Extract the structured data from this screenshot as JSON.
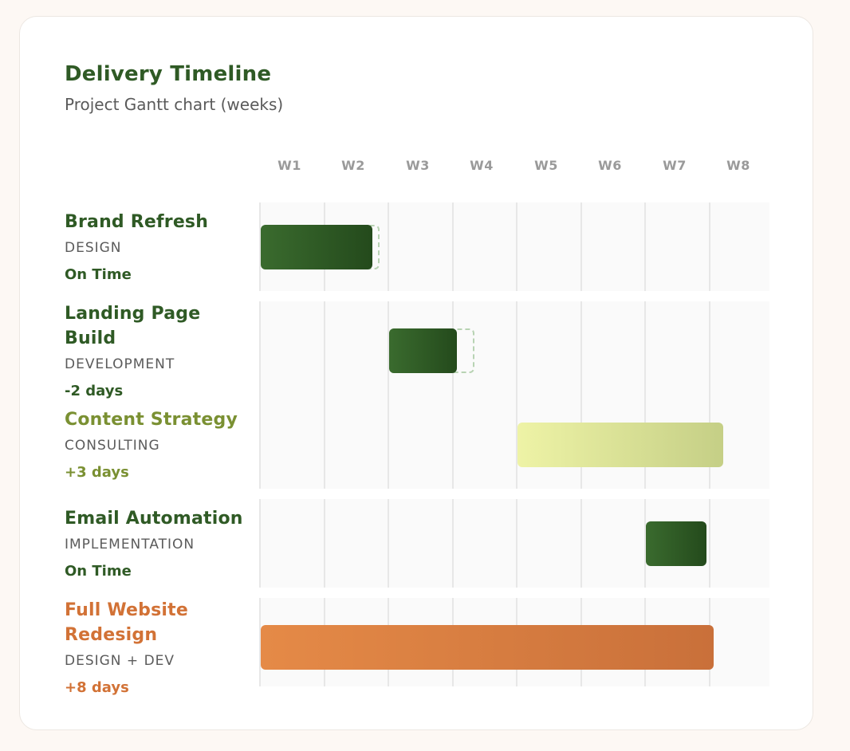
{
  "header": {
    "title": "Delivery Timeline",
    "subtitle": "Project Gantt chart (weeks)"
  },
  "colors": {
    "green_dark": "#2f5a25",
    "green_bar_start": "#3a6b2e",
    "green_bar_end": "#244a1c",
    "olive": "#7a9032",
    "lime_start": "#eef3a6",
    "lime_end": "#c5cf86",
    "orange": "#d27236",
    "orange_start": "#e58a47",
    "orange_end": "#c9703a",
    "ghost_border": "#b8d3b3"
  },
  "chart_data": {
    "type": "gantt",
    "title": "Delivery Timeline",
    "subtitle": "Project Gantt chart (weeks)",
    "weeks": [
      "W1",
      "W2",
      "W3",
      "W4",
      "W5",
      "W6",
      "W7",
      "W8"
    ],
    "tasks": [
      {
        "name": "Brand Refresh",
        "category": "DESIGN",
        "status": "On Time",
        "tone": "green",
        "start": 0,
        "end": 1.74,
        "planned_end": 1.85
      },
      {
        "name": "Landing Page Build",
        "category": "DEVELOPMENT",
        "status": "-2 days",
        "tone": "green",
        "start": 2.0,
        "end": 3.06,
        "planned_end": 3.33
      },
      {
        "name": "Content Strategy",
        "category": "CONSULTING",
        "status": "+3 days",
        "tone": "lime",
        "start": 4.0,
        "end": 7.2
      },
      {
        "name": "Email Automation",
        "category": "IMPLEMENTATION",
        "status": "On Time",
        "tone": "green",
        "start": 6.0,
        "end": 6.95
      },
      {
        "name": "Full Website Redesign",
        "category": "DESIGN + DEV",
        "status": "+8 days",
        "tone": "orange",
        "start": 0,
        "end": 7.05
      }
    ]
  }
}
